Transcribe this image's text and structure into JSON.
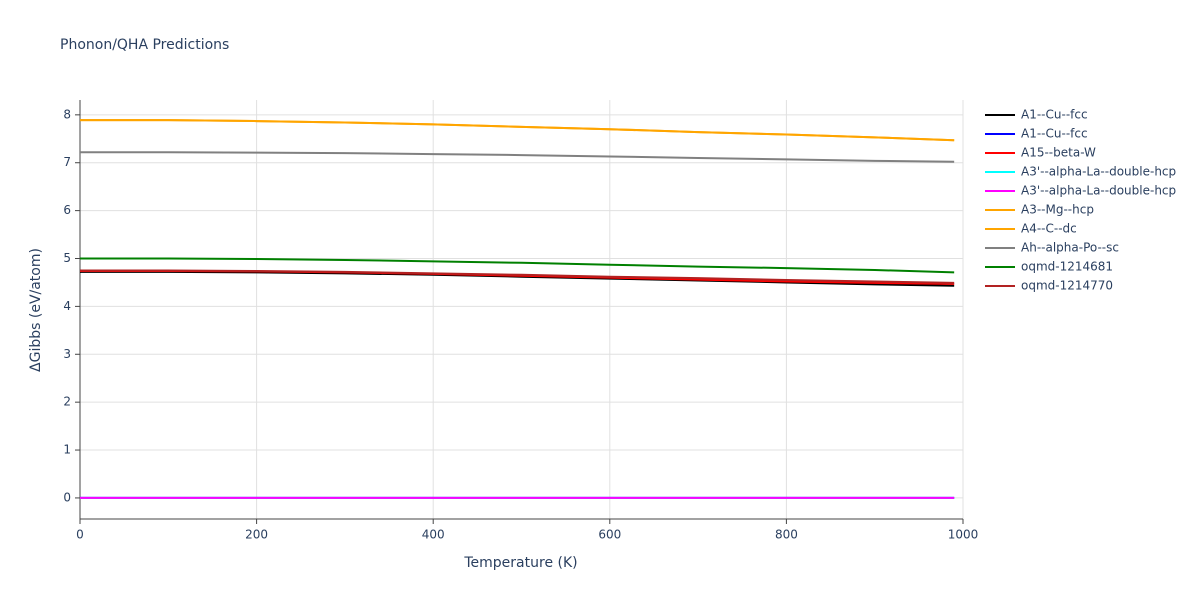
{
  "chart_data": {
    "type": "line",
    "title": "Phonon/QHA Predictions",
    "x_label": "Temperature (K)",
    "y_label": "ΔGibbs (eV/atom)",
    "x": [
      0,
      100,
      200,
      300,
      400,
      500,
      600,
      700,
      800,
      900,
      990
    ],
    "series": [
      {
        "name": "A1--Cu--fcc",
        "color": "#000000",
        "values": [
          4.72,
          4.72,
          4.71,
          4.69,
          4.66,
          4.62,
          4.58,
          4.54,
          4.5,
          4.46,
          4.43
        ]
      },
      {
        "name": "A1--Cu--fcc",
        "color": "#0000ff",
        "values": [
          0,
          0,
          0,
          0,
          0,
          0,
          0,
          0,
          0,
          0,
          0
        ]
      },
      {
        "name": "A15--beta-W",
        "color": "#ff0000",
        "values": [
          4.74,
          4.74,
          4.73,
          4.71,
          4.68,
          4.64,
          4.6,
          4.56,
          4.52,
          4.49,
          4.47
        ]
      },
      {
        "name": "A3'--alpha-La--double-hcp",
        "color": "#00ffff",
        "values": [
          0,
          0,
          0,
          0,
          0,
          0,
          0,
          0,
          0,
          0,
          0
        ]
      },
      {
        "name": "A3'--alpha-La--double-hcp",
        "color": "#ff00ff",
        "values": [
          0,
          0,
          0,
          0,
          0,
          0,
          0,
          0,
          0,
          0,
          0
        ]
      },
      {
        "name": "A3--Mg--hcp",
        "color": "#ffa500",
        "values": [
          7.89,
          7.89,
          7.87,
          7.84,
          7.8,
          7.75,
          7.7,
          7.64,
          7.59,
          7.53,
          7.47
        ]
      },
      {
        "name": "A4--C--dc",
        "color": "#ffa500",
        "values": [
          7.89,
          7.89,
          7.87,
          7.84,
          7.8,
          7.75,
          7.7,
          7.64,
          7.59,
          7.53,
          7.47
        ]
      },
      {
        "name": "Ah--alpha-Po--sc",
        "color": "#808080",
        "values": [
          7.22,
          7.22,
          7.21,
          7.2,
          7.18,
          7.16,
          7.13,
          7.1,
          7.07,
          7.04,
          7.02
        ]
      },
      {
        "name": "oqmd-1214681",
        "color": "#008000",
        "values": [
          5.0,
          5.0,
          4.99,
          4.97,
          4.94,
          4.91,
          4.87,
          4.83,
          4.8,
          4.76,
          4.71
        ]
      },
      {
        "name": "oqmd-1214770",
        "color": "#b22222",
        "values": [
          4.75,
          4.75,
          4.74,
          4.72,
          4.69,
          4.66,
          4.62,
          4.59,
          4.55,
          4.52,
          4.49
        ]
      }
    ],
    "xlim": [
      0,
      1000
    ],
    "xticks": [
      0,
      200,
      400,
      600,
      800,
      1000
    ],
    "ylim": [
      -0.44,
      8.31
    ],
    "yticks": [
      0,
      1,
      2,
      3,
      4,
      5,
      6,
      7,
      8
    ],
    "grid": true,
    "legend": "right"
  }
}
